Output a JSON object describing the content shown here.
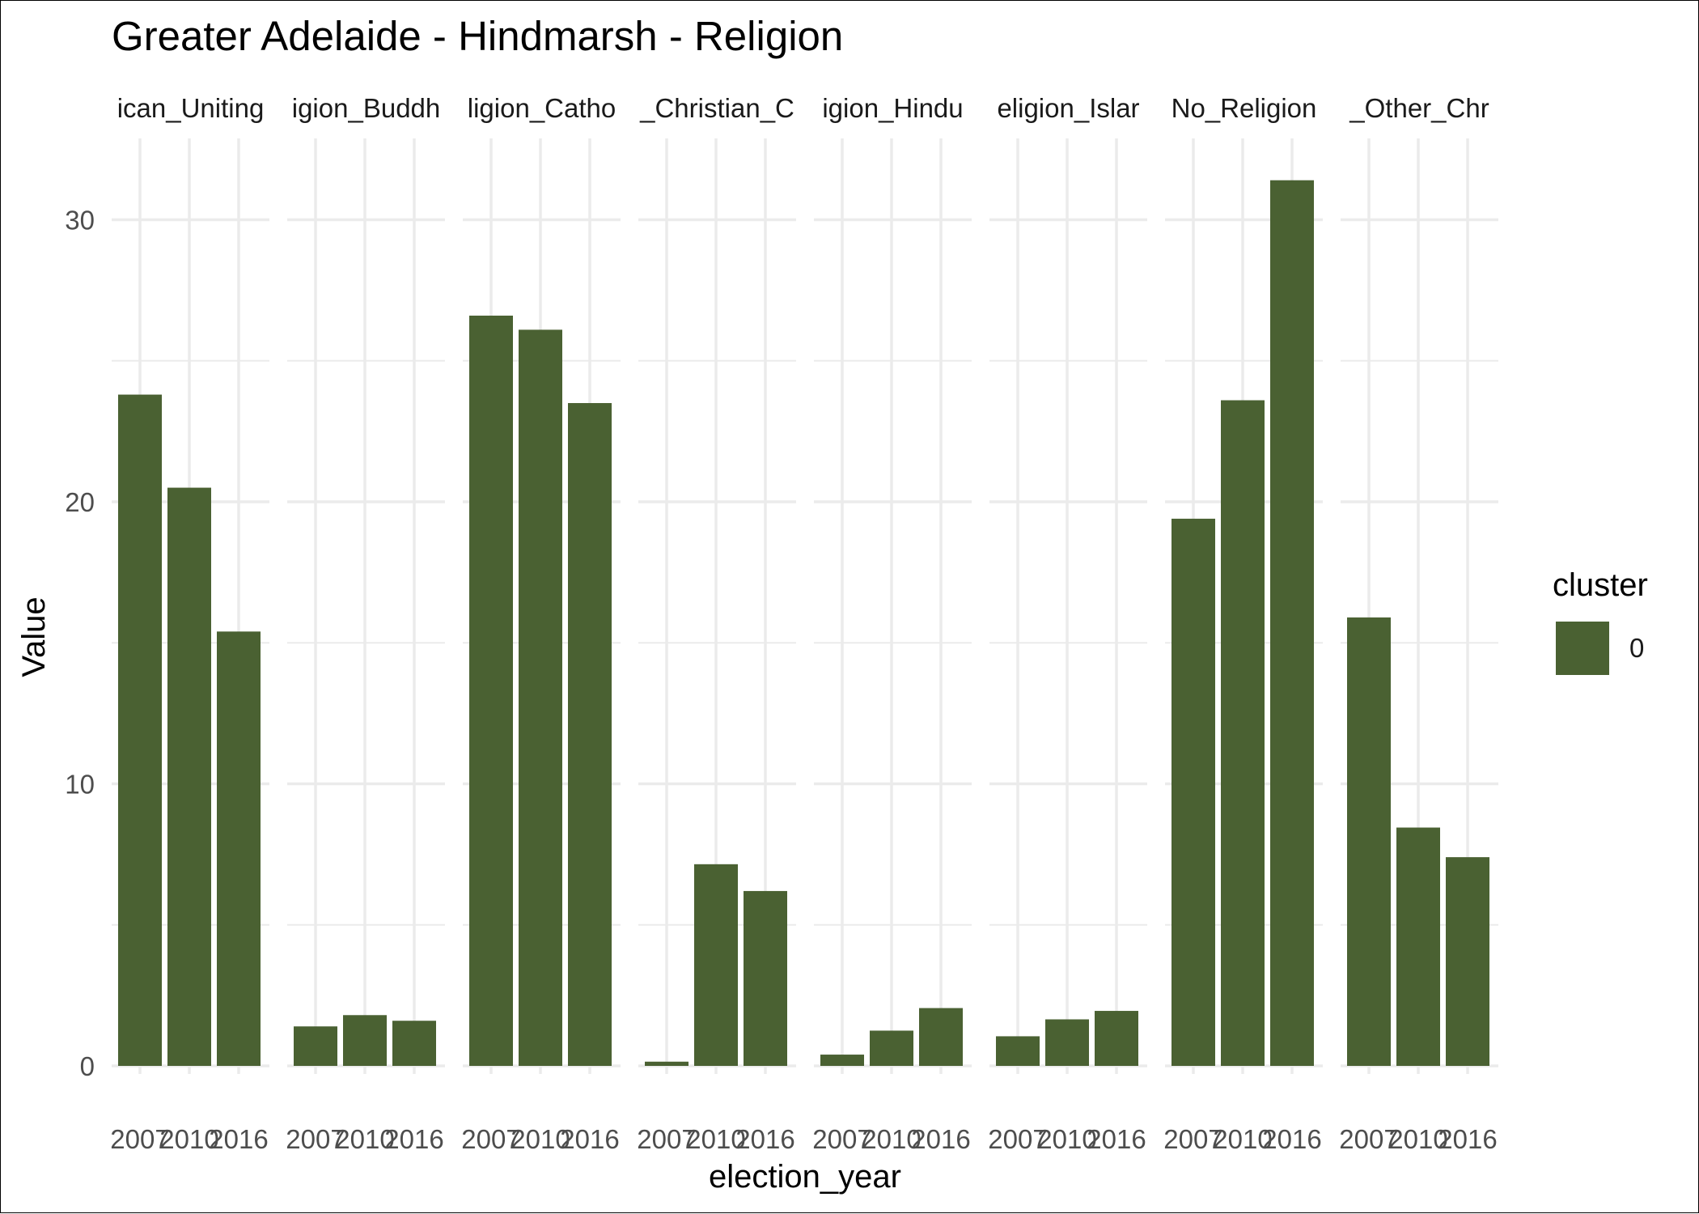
{
  "chart_data": {
    "type": "bar",
    "title": "Greater Adelaide - Hindmarsh - Religion",
    "xlabel": "election_year",
    "ylabel": "Value",
    "ylim": [
      0,
      32.5
    ],
    "y_ticks": [
      0,
      10,
      20,
      30
    ],
    "categories": [
      "2007",
      "2010",
      "2016"
    ],
    "facet_labels": [
      "ican_Uniting",
      "igion_Buddh",
      "ligion_Catho",
      "_Christian_C",
      "igion_Hindu",
      "eligion_Islar",
      "No_Religion",
      "_Other_Chr"
    ],
    "series": [
      {
        "name": "0",
        "values": [
          [
            23.8,
            20.5,
            15.4
          ],
          [
            1.4,
            1.8,
            1.6
          ],
          [
            26.6,
            26.1,
            23.5
          ],
          [
            0.15,
            7.15,
            6.2
          ],
          [
            0.4,
            1.25,
            2.05
          ],
          [
            1.05,
            1.65,
            1.95
          ],
          [
            19.4,
            23.6,
            31.4
          ],
          [
            15.9,
            8.45,
            7.4
          ]
        ]
      }
    ],
    "legend": {
      "title": "cluster",
      "labels": [
        "0"
      ],
      "position": "right"
    },
    "colors": {
      "bar": "#4a6132",
      "grid": "#ebebeb"
    },
    "grid": true
  }
}
